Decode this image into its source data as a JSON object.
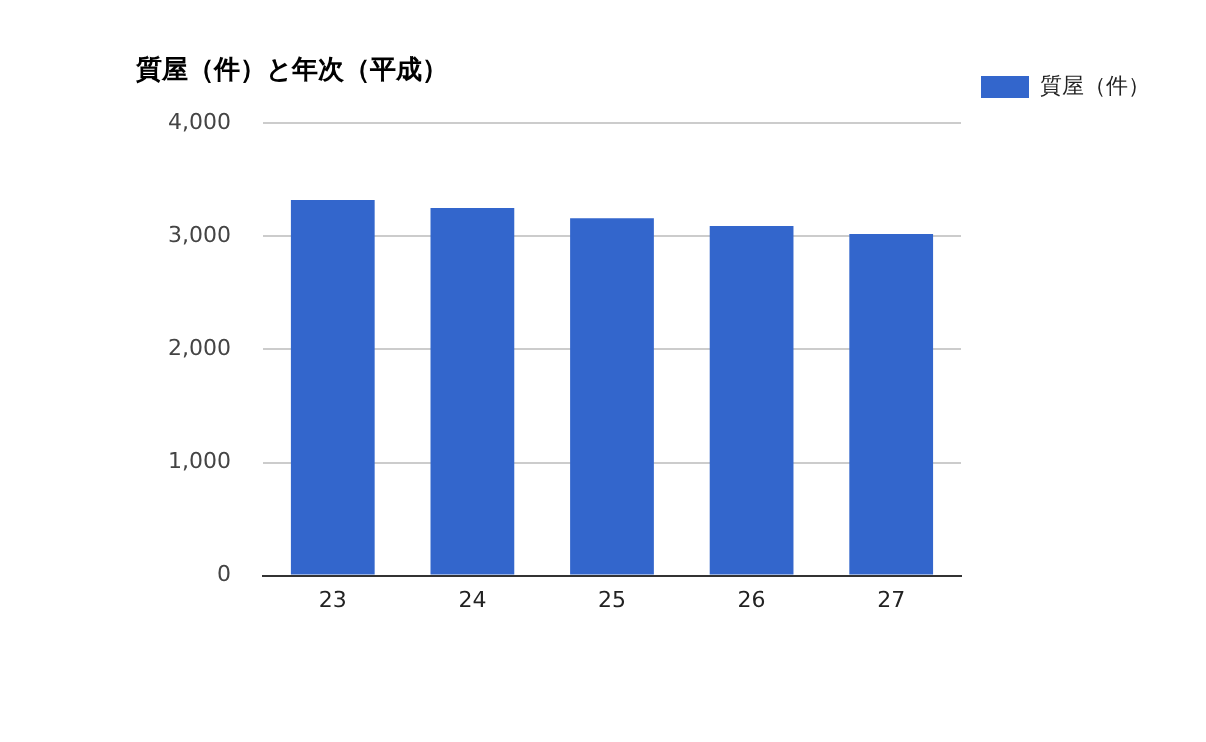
{
  "chart_data": {
    "type": "bar",
    "title": "質屋（件）と年次（平成）",
    "categories": [
      "23",
      "24",
      "25",
      "26",
      "27"
    ],
    "series": [
      {
        "name": "質屋（件）",
        "color": "#3366cc",
        "values": [
          3320,
          3250,
          3160,
          3090,
          3020
        ]
      }
    ],
    "ylim": [
      0,
      4000
    ],
    "yticks": [
      {
        "value": 0,
        "label": "0"
      },
      {
        "value": 1000,
        "label": "1,000"
      },
      {
        "value": 2000,
        "label": "2,000"
      },
      {
        "value": 3000,
        "label": "3,000"
      },
      {
        "value": 4000,
        "label": "4,000"
      }
    ],
    "grid": "y",
    "legend": "right"
  }
}
